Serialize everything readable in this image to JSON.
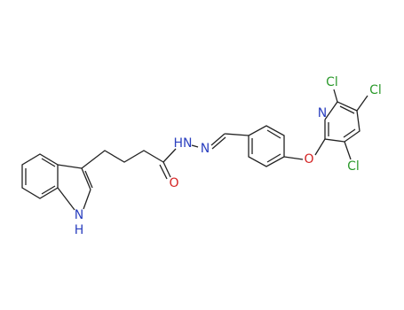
{
  "labels": [
    "Cl",
    "Cl",
    "N",
    "O",
    "Cl",
    "HN",
    "N",
    "O",
    "N",
    "H"
  ]
}
